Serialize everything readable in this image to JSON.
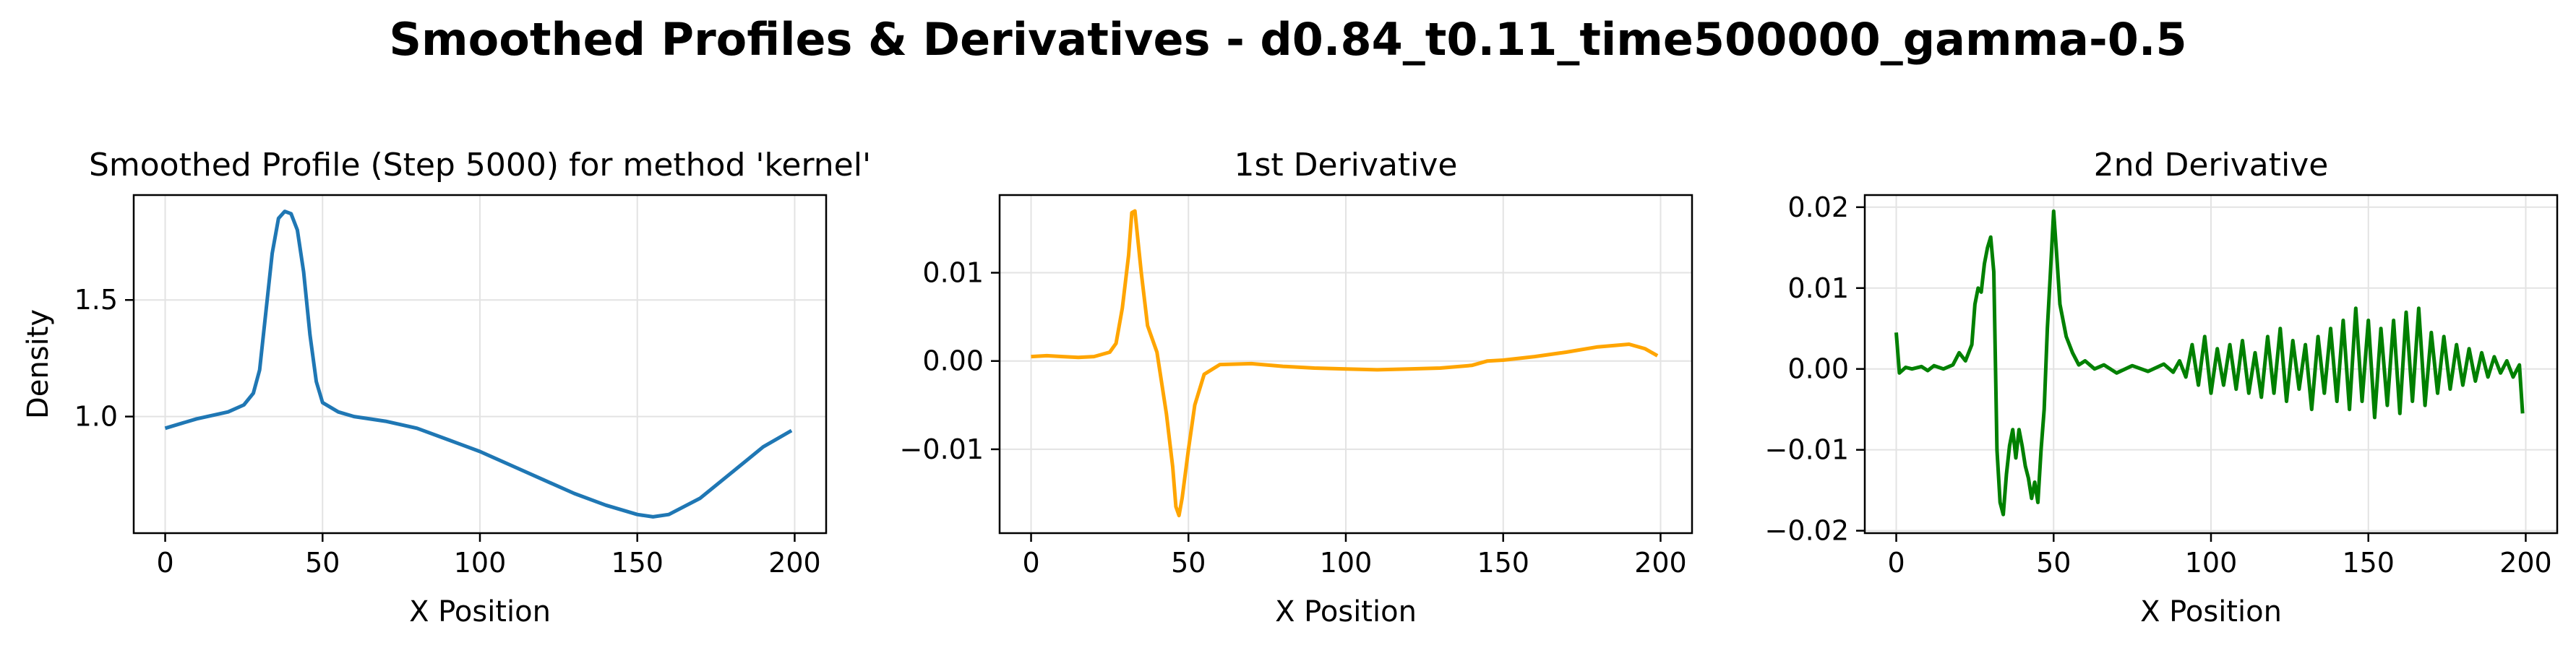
{
  "figure": {
    "suptitle": "Smoothed Profiles & Derivatives - d0.84_t0.11_time500000_gamma-0.5"
  },
  "chart_data": [
    {
      "type": "line",
      "title": "Smoothed Profile (Step 5000) for method 'kernel'",
      "xlabel": "X Position",
      "ylabel": "Density",
      "xlim": [
        -10,
        210
      ],
      "ylim": [
        0.5,
        1.95
      ],
      "xticks": [
        0,
        50,
        100,
        150,
        200
      ],
      "yticks": [
        1.0,
        1.5
      ],
      "ytick_labels": [
        "1.0",
        "1.5"
      ],
      "grid": true,
      "color": "#1f77b4",
      "series": [
        {
          "x": [
            0,
            10,
            20,
            25,
            28,
            30,
            32,
            34,
            36,
            38,
            40,
            42,
            44,
            46,
            48,
            50,
            55,
            60,
            70,
            80,
            90,
            100,
            110,
            120,
            130,
            140,
            150,
            155,
            160,
            170,
            180,
            190,
            199
          ],
          "y": [
            0.95,
            0.99,
            1.02,
            1.05,
            1.1,
            1.2,
            1.45,
            1.7,
            1.85,
            1.88,
            1.87,
            1.8,
            1.62,
            1.35,
            1.15,
            1.06,
            1.02,
            1.0,
            0.98,
            0.95,
            0.9,
            0.85,
            0.79,
            0.73,
            0.67,
            0.62,
            0.58,
            0.57,
            0.58,
            0.65,
            0.76,
            0.87,
            0.94
          ]
        }
      ]
    },
    {
      "type": "line",
      "title": "1st Derivative",
      "xlabel": "X Position",
      "ylabel": "",
      "xlim": [
        -10,
        210
      ],
      "ylim": [
        -0.0195,
        0.0188
      ],
      "xticks": [
        0,
        50,
        100,
        150,
        200
      ],
      "yticks": [
        -0.01,
        0.0,
        0.01
      ],
      "ytick_labels": [
        "−0.01",
        "0.00",
        "0.01"
      ],
      "grid": true,
      "color": "#ffa500",
      "series": [
        {
          "x": [
            0,
            5,
            10,
            15,
            20,
            25,
            27,
            29,
            31,
            32,
            33,
            35,
            37,
            40,
            43,
            45,
            46,
            47,
            48,
            50,
            52,
            55,
            60,
            70,
            80,
            90,
            100,
            110,
            120,
            130,
            140,
            145,
            150,
            160,
            170,
            180,
            190,
            195,
            199
          ],
          "y": [
            0.0005,
            0.0006,
            0.0005,
            0.0004,
            0.0005,
            0.001,
            0.002,
            0.006,
            0.012,
            0.0168,
            0.017,
            0.01,
            0.004,
            0.001,
            -0.006,
            -0.012,
            -0.0165,
            -0.0175,
            -0.0155,
            -0.01,
            -0.005,
            -0.0015,
            -0.0004,
            -0.0003,
            -0.0006,
            -0.0008,
            -0.0009,
            -0.001,
            -0.0009,
            -0.0008,
            -0.0005,
            0.0,
            0.0001,
            0.0005,
            0.001,
            0.0016,
            0.0019,
            0.0014,
            0.0006
          ]
        }
      ]
    },
    {
      "type": "line",
      "title": "2nd Derivative",
      "xlabel": "X Position",
      "ylabel": "",
      "xlim": [
        -10,
        210
      ],
      "ylim": [
        -0.0203,
        0.0215
      ],
      "xticks": [
        0,
        50,
        100,
        150,
        200
      ],
      "yticks": [
        -0.02,
        -0.01,
        0.0,
        0.01,
        0.02
      ],
      "ytick_labels": [
        "−0.02",
        "−0.01",
        "0.00",
        "0.01",
        "0.02"
      ],
      "grid": true,
      "color": "#008000",
      "series": [
        {
          "x": [
            0,
            1,
            3,
            5,
            8,
            10,
            12,
            15,
            18,
            20,
            22,
            24,
            25,
            26,
            27,
            28,
            29,
            30,
            31,
            32,
            33,
            34,
            35,
            36,
            37,
            38,
            39,
            40,
            41,
            42,
            43,
            44,
            45,
            46,
            47,
            48,
            49,
            50,
            51,
            52,
            54,
            56,
            58,
            60,
            63,
            66,
            70,
            75,
            80,
            85,
            88,
            90,
            92,
            94,
            96,
            98,
            100,
            102,
            104,
            106,
            108,
            110,
            112,
            114,
            116,
            118,
            120,
            122,
            124,
            126,
            128,
            130,
            132,
            134,
            136,
            138,
            140,
            142,
            144,
            146,
            148,
            150,
            152,
            154,
            156,
            158,
            160,
            162,
            164,
            166,
            168,
            170,
            172,
            174,
            176,
            178,
            180,
            182,
            184,
            186,
            188,
            190,
            192,
            194,
            196,
            198,
            199
          ],
          "y": [
            0.0045,
            -0.0005,
            0.0002,
            0.0,
            0.0003,
            -0.0002,
            0.0004,
            0.0,
            0.0005,
            0.002,
            0.001,
            0.003,
            0.008,
            0.01,
            0.0095,
            0.013,
            0.015,
            0.0163,
            0.012,
            -0.01,
            -0.0165,
            -0.018,
            -0.013,
            -0.0095,
            -0.0075,
            -0.011,
            -0.0075,
            -0.0095,
            -0.012,
            -0.0135,
            -0.016,
            -0.014,
            -0.0165,
            -0.01,
            -0.005,
            0.005,
            0.012,
            0.0195,
            0.014,
            0.008,
            0.004,
            0.002,
            0.0005,
            0.001,
            0.0,
            0.0005,
            -0.0005,
            0.0004,
            -0.0003,
            0.0006,
            -0.0004,
            0.001,
            -0.001,
            0.003,
            -0.002,
            0.004,
            -0.003,
            0.0025,
            -0.002,
            0.003,
            -0.0025,
            0.0035,
            -0.003,
            0.002,
            -0.0035,
            0.004,
            -0.003,
            0.005,
            -0.004,
            0.0035,
            -0.0025,
            0.003,
            -0.005,
            0.004,
            -0.003,
            0.005,
            -0.004,
            0.006,
            -0.005,
            0.0075,
            -0.004,
            0.006,
            -0.006,
            0.005,
            -0.0045,
            0.006,
            -0.0055,
            0.007,
            -0.004,
            0.0075,
            -0.0045,
            0.0045,
            -0.003,
            0.004,
            -0.0025,
            0.003,
            -0.002,
            0.0025,
            -0.0015,
            0.002,
            -0.001,
            0.0015,
            -0.0005,
            0.001,
            -0.001,
            0.0005,
            -0.0055
          ]
        }
      ]
    }
  ]
}
